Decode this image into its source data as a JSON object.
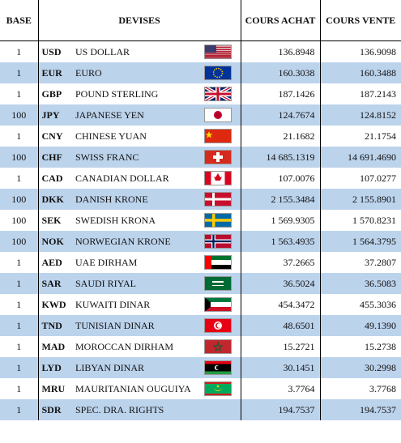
{
  "header": {
    "base": "BASE",
    "devises": "DEVISES",
    "achat": "COURS ACHAT",
    "vente": "COURS VENTE"
  },
  "rows": [
    [
      "1",
      "USD",
      "US DOLLAR",
      "136.8948",
      "136.9098"
    ],
    [
      "1",
      "EUR",
      "EURO",
      "160.3038",
      "160.3488"
    ],
    [
      "1",
      "GBP",
      "POUND STERLING",
      "187.1426",
      "187.2143"
    ],
    [
      "100",
      "JPY",
      "JAPANESE YEN",
      "124.7674",
      "124.8152"
    ],
    [
      "1",
      "CNY",
      "CHINESE YUAN",
      "21.1682",
      "21.1754"
    ],
    [
      "100",
      "CHF",
      "SWISS FRANC",
      "14 685.1319",
      "14 691.4690"
    ],
    [
      "1",
      "CAD",
      "CANADIAN DOLLAR",
      "107.0076",
      "107.0277"
    ],
    [
      "100",
      "DKK",
      "DANISH KRONE",
      "2 155.3484",
      "2 155.8901"
    ],
    [
      "100",
      "SEK",
      "SWEDISH KRONA",
      "1 569.9305",
      "1 570.8231"
    ],
    [
      "100",
      "NOK",
      "NORWEGIAN KRONE",
      "1 563.4935",
      "1 564.3795"
    ],
    [
      "1",
      "AED",
      "UAE DIRHAM",
      "37.2665",
      "37.2807"
    ],
    [
      "1",
      "SAR",
      "SAUDI RIYAL",
      "36.5024",
      "36.5083"
    ],
    [
      "1",
      "KWD",
      "KUWAITI DINAR",
      "454.3472",
      "455.3036"
    ],
    [
      "1",
      "TND",
      "TUNISIAN DINAR",
      "48.6501",
      "49.1390"
    ],
    [
      "1",
      "MAD",
      "MOROCCAN DIRHAM",
      "15.2721",
      "15.2738"
    ],
    [
      "1",
      "LYD",
      "LIBYAN DINAR",
      "30.1451",
      "30.2998"
    ],
    [
      "1",
      "MRU",
      "MAURITANIAN OUGUIYA",
      "3.7764",
      "3.7768"
    ],
    [
      "1",
      "SDR",
      "SPEC. DRA. RIGHTS",
      "194.7537",
      "194.7537"
    ]
  ]
}
